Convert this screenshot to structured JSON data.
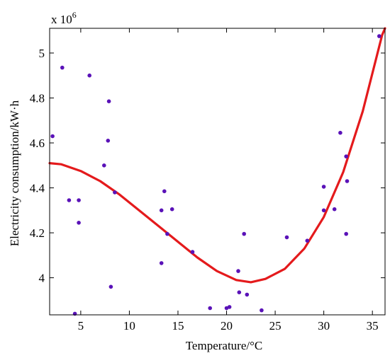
{
  "chart_data": {
    "type": "scatter",
    "title": "",
    "xlabel": "Temperature/°C",
    "ylabel": "Electricity consumption/kW·h",
    "y_multiplier_text": "x 10",
    "y_multiplier_exp": "6",
    "xlim": [
      1.8,
      36.3
    ],
    "ylim": [
      3.835,
      5.11
    ],
    "x_ticks": [
      5,
      10,
      15,
      20,
      25,
      30,
      35
    ],
    "x_tick_labels": [
      "5",
      "10",
      "15",
      "20",
      "25",
      "30",
      "35"
    ],
    "y_ticks": [
      4.0,
      4.2,
      4.4,
      4.6,
      4.8,
      5.0
    ],
    "y_tick_labels": [
      "4",
      "4.2",
      "4.4",
      "4.6",
      "4.8",
      "5"
    ],
    "grid": false,
    "colors": {
      "points": "#5a12b8",
      "fit_line": "#e41a1c",
      "axes": "#000000"
    },
    "series": [
      {
        "type": "scatter",
        "points": [
          {
            "x": 2.1,
            "y": 4.63
          },
          {
            "x": 3.1,
            "y": 4.935
          },
          {
            "x": 3.8,
            "y": 4.345
          },
          {
            "x": 4.4,
            "y": 3.84
          },
          {
            "x": 4.8,
            "y": 4.345
          },
          {
            "x": 4.8,
            "y": 4.245
          },
          {
            "x": 5.9,
            "y": 4.9
          },
          {
            "x": 7.4,
            "y": 4.5
          },
          {
            "x": 7.8,
            "y": 4.61
          },
          {
            "x": 7.9,
            "y": 4.785
          },
          {
            "x": 8.1,
            "y": 3.96
          },
          {
            "x": 8.5,
            "y": 4.38
          },
          {
            "x": 13.3,
            "y": 4.3
          },
          {
            "x": 13.3,
            "y": 4.065
          },
          {
            "x": 13.6,
            "y": 4.385
          },
          {
            "x": 13.9,
            "y": 4.195
          },
          {
            "x": 14.4,
            "y": 4.305
          },
          {
            "x": 16.5,
            "y": 4.115
          },
          {
            "x": 18.3,
            "y": 3.865
          },
          {
            "x": 20.0,
            "y": 3.865
          },
          {
            "x": 20.3,
            "y": 3.87
          },
          {
            "x": 21.2,
            "y": 4.03
          },
          {
            "x": 21.3,
            "y": 3.935
          },
          {
            "x": 21.8,
            "y": 4.195
          },
          {
            "x": 22.1,
            "y": 3.925
          },
          {
            "x": 23.6,
            "y": 3.855
          },
          {
            "x": 26.2,
            "y": 4.18
          },
          {
            "x": 28.3,
            "y": 4.165
          },
          {
            "x": 30.0,
            "y": 4.405
          },
          {
            "x": 30.0,
            "y": 4.3
          },
          {
            "x": 31.1,
            "y": 4.305
          },
          {
            "x": 31.7,
            "y": 4.645
          },
          {
            "x": 32.3,
            "y": 4.54
          },
          {
            "x": 32.3,
            "y": 4.195
          },
          {
            "x": 32.4,
            "y": 4.43
          },
          {
            "x": 35.7,
            "y": 5.075
          }
        ]
      },
      {
        "type": "line",
        "points": [
          {
            "x": 1.8,
            "y": 4.51
          },
          {
            "x": 3.0,
            "y": 4.505
          },
          {
            "x": 5.0,
            "y": 4.475
          },
          {
            "x": 7.0,
            "y": 4.43
          },
          {
            "x": 9.0,
            "y": 4.37
          },
          {
            "x": 11.0,
            "y": 4.3
          },
          {
            "x": 13.0,
            "y": 4.23
          },
          {
            "x": 15.0,
            "y": 4.16
          },
          {
            "x": 17.0,
            "y": 4.09
          },
          {
            "x": 19.0,
            "y": 4.03
          },
          {
            "x": 21.0,
            "y": 3.99
          },
          {
            "x": 22.5,
            "y": 3.98
          },
          {
            "x": 24.0,
            "y": 3.995
          },
          {
            "x": 26.0,
            "y": 4.04
          },
          {
            "x": 28.0,
            "y": 4.13
          },
          {
            "x": 30.0,
            "y": 4.27
          },
          {
            "x": 32.0,
            "y": 4.47
          },
          {
            "x": 34.0,
            "y": 4.74
          },
          {
            "x": 36.0,
            "y": 5.08
          },
          {
            "x": 36.3,
            "y": 5.11
          }
        ]
      }
    ]
  }
}
